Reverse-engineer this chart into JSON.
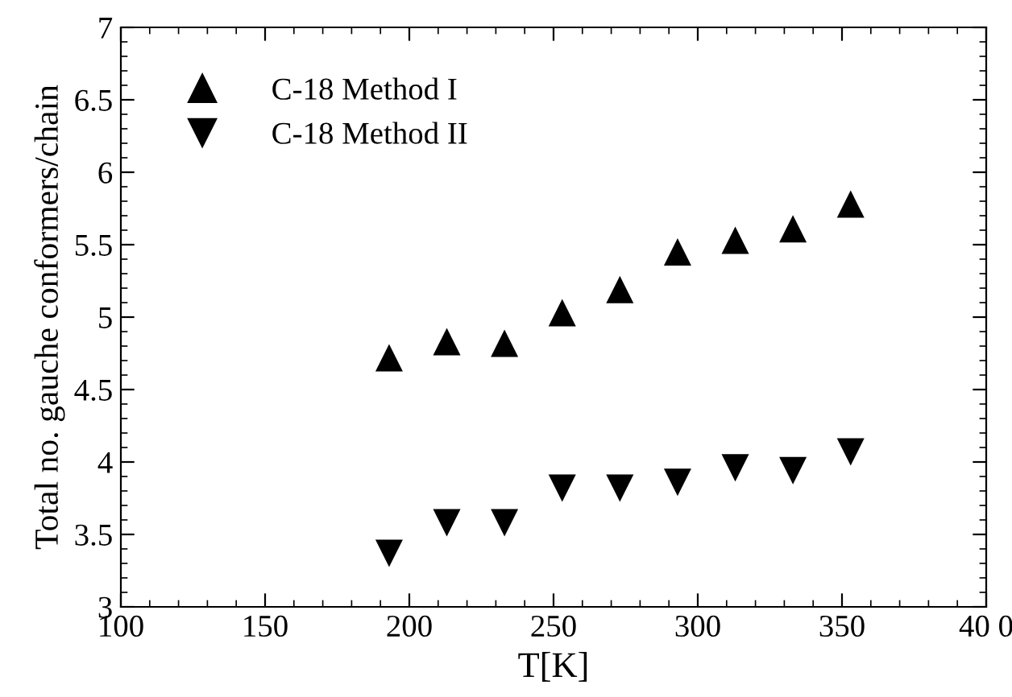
{
  "chart_data": {
    "type": "scatter",
    "xlabel": "T[K]",
    "ylabel": "Total no. gauche conformers/chain",
    "x": [
      193,
      213,
      233,
      253,
      273,
      293,
      313,
      333,
      353
    ],
    "series": [
      {
        "name": "C-18 Method I",
        "color": "#000000",
        "marker": "triangle",
        "values": [
          4.72,
          4.83,
          4.82,
          5.03,
          5.19,
          5.45,
          5.53,
          5.61,
          5.78
        ]
      },
      {
        "name": "C-18 Method II",
        "color": "#000000",
        "marker": "triangle_down",
        "values": [
          3.37,
          3.58,
          3.58,
          3.82,
          3.82,
          3.86,
          3.96,
          3.94,
          4.07
        ]
      }
    ],
    "xlim": [
      100,
      400
    ],
    "xticks": [
      100,
      150,
      200,
      250,
      300,
      350,
      {
        "value": 400,
        "label": "40 0"
      }
    ],
    "ylim": [
      3,
      7
    ],
    "yticks": [
      3,
      3.5,
      4,
      4.5,
      5,
      5.5,
      6,
      6.5,
      7
    ],
    "grid": false,
    "legend": "top left"
  }
}
